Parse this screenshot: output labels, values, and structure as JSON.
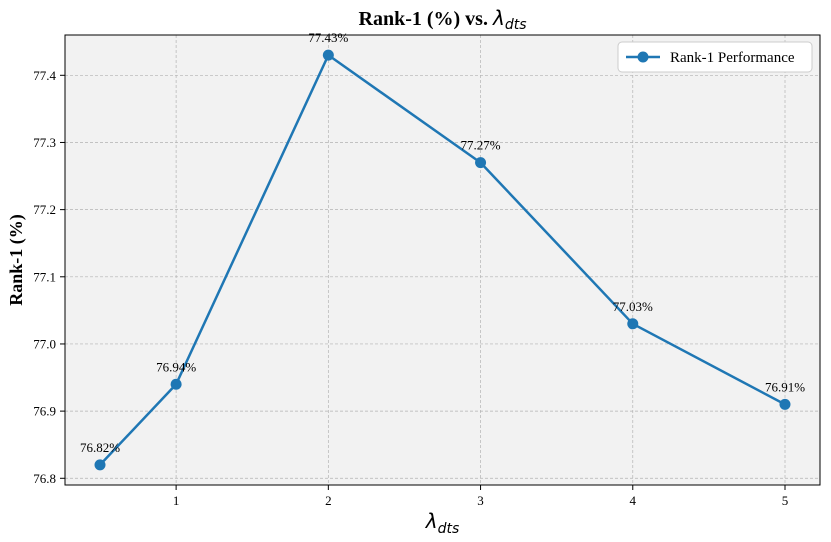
{
  "chart_data": {
    "type": "line",
    "title": "Rank-1 (%) vs. λdts",
    "title_parts": {
      "prefix": "Rank-1 (%) vs. ",
      "symbol": "λ",
      "subscript": "dts"
    },
    "xlabel": "λdts",
    "xlabel_parts": {
      "symbol": "λ",
      "subscript": "dts"
    },
    "ylabel": "Rank-1 (%)",
    "x": [
      0.5,
      1,
      2,
      3,
      4,
      5
    ],
    "series": [
      {
        "name": "Rank-1 Performance",
        "values": [
          76.82,
          76.94,
          77.43,
          77.27,
          77.03,
          76.91
        ],
        "color": "#1f77b4",
        "data_labels": [
          "76.82%",
          "76.94%",
          "77.43%",
          "77.27%",
          "77.03%",
          "76.91%"
        ]
      }
    ],
    "xlim": [
      0.27,
      5.23
    ],
    "ylim": [
      76.79,
      77.46
    ],
    "xticks": [
      1,
      2,
      3,
      4,
      5
    ],
    "xtick_labels": [
      "1",
      "2",
      "3",
      "4",
      "5"
    ],
    "yticks": [
      76.8,
      76.9,
      77.0,
      77.1,
      77.2,
      77.3,
      77.4
    ],
    "ytick_labels": [
      "76.8",
      "76.9",
      "77.0",
      "77.1",
      "77.2",
      "77.3",
      "77.4"
    ],
    "grid": true,
    "legend_position": "top-right",
    "plot_background": "#f2f2f2"
  }
}
